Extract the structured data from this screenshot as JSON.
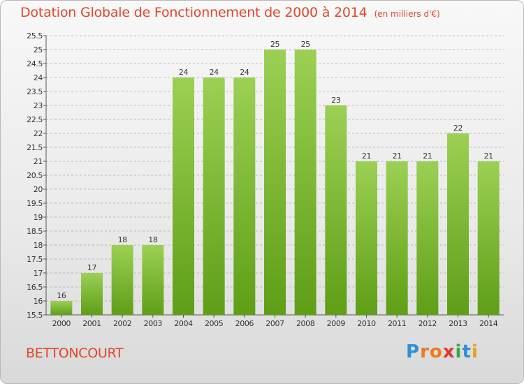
{
  "header": {
    "title": "Dotation Globale de Fonctionnement de 2000 à 2014",
    "subtitle": "(en milliers d'€)"
  },
  "footer": {
    "commune": "BETTONCOURT",
    "brand": {
      "letters": [
        "P",
        "r",
        "o",
        "x",
        "i",
        "t",
        "i"
      ],
      "colors": [
        "#2f8fd6",
        "#f07a1e",
        "#f07a1e",
        "#e23a2a",
        "#39a84a",
        "#2f8fd6",
        "#e2a21d"
      ]
    }
  },
  "colors": {
    "bar_light": "#9bd054",
    "bar_dark": "#5f9e16",
    "axis": "#555555",
    "grid": "#aaaaaa",
    "title": "#e3452b"
  },
  "chart_data": {
    "type": "bar",
    "categories": [
      "2000",
      "2001",
      "2002",
      "2003",
      "2004",
      "2005",
      "2006",
      "2007",
      "2008",
      "2009",
      "2010",
      "2011",
      "2012",
      "2013",
      "2014"
    ],
    "values": [
      16,
      17,
      18,
      18,
      24,
      24,
      24,
      25,
      25,
      23,
      21,
      21,
      21,
      22,
      21
    ],
    "title": "Dotation Globale de Fonctionnement de 2000 à 2014",
    "subtitle": "(en milliers d'€)",
    "xlabel": "",
    "ylabel": "",
    "ylim": [
      15.5,
      25.5
    ],
    "ytick_step": 0.5,
    "yticks": [
      "15.5",
      "16",
      "16.5",
      "17",
      "17.5",
      "18",
      "18.5",
      "19",
      "19.5",
      "20",
      "20.5",
      "21",
      "21.5",
      "22",
      "22.5",
      "23",
      "23.5",
      "24",
      "24.5",
      "25",
      "25.5"
    ],
    "grid": "horizontal dashed",
    "legend": "none"
  }
}
